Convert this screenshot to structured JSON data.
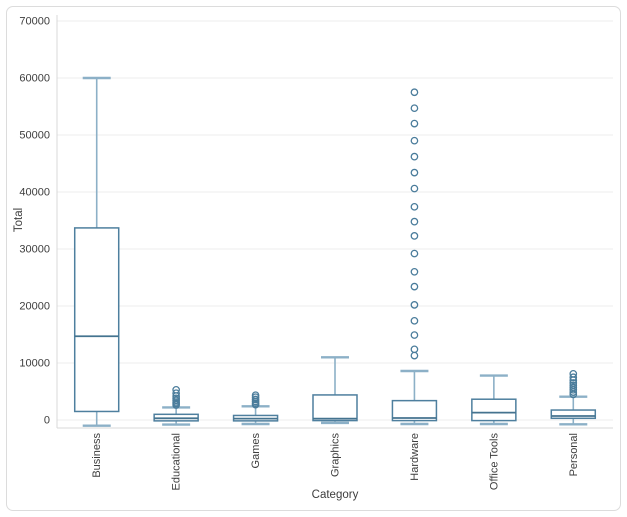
{
  "chart_data": {
    "type": "box",
    "title": "",
    "xlabel": "Category",
    "ylabel": "Total",
    "categories": [
      "Business",
      "Educational",
      "Games",
      "Graphics",
      "Hardware",
      "Office Tools",
      "Personal"
    ],
    "y_ticks": [
      0,
      10000,
      20000,
      30000,
      40000,
      50000,
      60000,
      70000
    ],
    "ylim": [
      -1400,
      71050
    ],
    "grid": true,
    "legend": false,
    "series": [
      {
        "name": "Business",
        "low": -1000,
        "q1": 1500,
        "median": 14700,
        "q3": 33700,
        "high": 60000,
        "outliers": []
      },
      {
        "name": "Educational",
        "low": -800,
        "q1": -150,
        "median": 300,
        "q3": 1000,
        "high": 2200,
        "outliers": [
          2640,
          2900,
          3150,
          3450,
          3800,
          4200,
          4700,
          5300
        ]
      },
      {
        "name": "Games",
        "low": -700,
        "q1": -150,
        "median": 250,
        "q3": 800,
        "high": 2400,
        "outliers": [
          2700,
          2950,
          3250,
          3600,
          4000,
          4350
        ]
      },
      {
        "name": "Graphics",
        "low": -500,
        "q1": -100,
        "median": 250,
        "q3": 4400,
        "high": 11000,
        "outliers": []
      },
      {
        "name": "Hardware",
        "low": -700,
        "q1": -100,
        "median": 350,
        "q3": 3400,
        "high": 8600,
        "outliers": [
          11300,
          12400,
          14900,
          17400,
          20200,
          23400,
          26000,
          29200,
          32300,
          34800,
          37400,
          40600,
          43400,
          46200,
          49000,
          52000,
          54700,
          57500
        ]
      },
      {
        "name": "Office Tools",
        "low": -700,
        "q1": -100,
        "median": 1300,
        "q3": 3650,
        "high": 7800,
        "outliers": []
      },
      {
        "name": "Personal",
        "low": -750,
        "q1": 300,
        "median": 700,
        "q3": 1750,
        "high": 4100,
        "outliers": [
          4500,
          4900,
          5300,
          5700,
          6100,
          6500,
          7000,
          7500,
          8100
        ]
      }
    ],
    "colors": {
      "box_stroke": "#4e7f9e",
      "median": "#44738f",
      "whisker": "#8cb0c7",
      "outlier": "#4a7c9b",
      "grid": "#ececec",
      "axis": "#d9d9d9",
      "text": "#3d3d3d",
      "background": "#ffffff",
      "frame": "#dcdcdc"
    }
  }
}
